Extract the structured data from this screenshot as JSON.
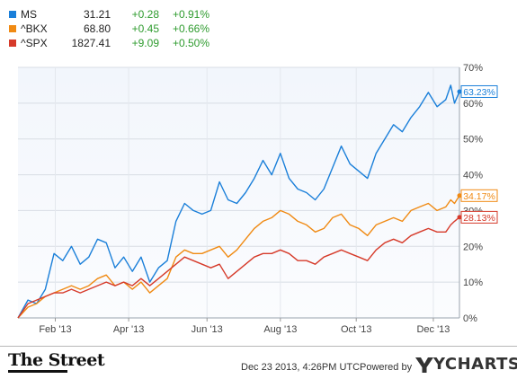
{
  "legend": [
    {
      "symbol": "MS",
      "price": "31.21",
      "change": "+0.28",
      "pct": "+0.91%",
      "color": "#1a7fd9"
    },
    {
      "symbol": "^BKX",
      "price": "68.80",
      "change": "+0.45",
      "pct": "+0.66%",
      "color": "#f08a13"
    },
    {
      "symbol": "^SPX",
      "price": "1827.41",
      "change": "+9.09",
      "pct": "+0.50%",
      "color": "#d63a2a"
    }
  ],
  "chart_data": {
    "type": "line",
    "title": "",
    "xlabel": "",
    "ylabel": "",
    "x_range": [
      "2013-01-02",
      "2013-12-23"
    ],
    "ylim": [
      0,
      70
    ],
    "y_ticks": [
      "0%",
      "10%",
      "20%",
      "30%",
      "40%",
      "50%",
      "60%",
      "70%"
    ],
    "y_tick_values": [
      0,
      10,
      20,
      30,
      40,
      50,
      60,
      70
    ],
    "x_ticks": [
      {
        "label": "Feb '13",
        "date": "2013-02-01"
      },
      {
        "label": "Apr '13",
        "date": "2013-04-01"
      },
      {
        "label": "Jun '13",
        "date": "2013-06-03"
      },
      {
        "label": "Aug '13",
        "date": "2013-08-01"
      },
      {
        "label": "Oct '13",
        "date": "2013-10-01"
      },
      {
        "label": "Dec '13",
        "date": "2013-12-02"
      }
    ],
    "grid": true,
    "legend_position": "top-left",
    "series": [
      {
        "name": "MS",
        "end_label": "63.23%",
        "color": "#1a7fd9",
        "points": [
          [
            "2013-01-02",
            0
          ],
          [
            "2013-01-10",
            5
          ],
          [
            "2013-01-17",
            4
          ],
          [
            "2013-01-24",
            8
          ],
          [
            "2013-01-31",
            18
          ],
          [
            "2013-02-07",
            16
          ],
          [
            "2013-02-14",
            20
          ],
          [
            "2013-02-21",
            15
          ],
          [
            "2013-02-28",
            17
          ],
          [
            "2013-03-07",
            22
          ],
          [
            "2013-03-14",
            21
          ],
          [
            "2013-03-21",
            14
          ],
          [
            "2013-03-28",
            17
          ],
          [
            "2013-04-04",
            13
          ],
          [
            "2013-04-11",
            17
          ],
          [
            "2013-04-18",
            10
          ],
          [
            "2013-04-25",
            14
          ],
          [
            "2013-05-02",
            16
          ],
          [
            "2013-05-09",
            27
          ],
          [
            "2013-05-16",
            32
          ],
          [
            "2013-05-23",
            30
          ],
          [
            "2013-05-30",
            29
          ],
          [
            "2013-06-06",
            30
          ],
          [
            "2013-06-13",
            38
          ],
          [
            "2013-06-20",
            33
          ],
          [
            "2013-06-27",
            32
          ],
          [
            "2013-07-04",
            35
          ],
          [
            "2013-07-11",
            39
          ],
          [
            "2013-07-18",
            44
          ],
          [
            "2013-07-25",
            40
          ],
          [
            "2013-08-01",
            46
          ],
          [
            "2013-08-08",
            39
          ],
          [
            "2013-08-15",
            36
          ],
          [
            "2013-08-22",
            35
          ],
          [
            "2013-08-29",
            33
          ],
          [
            "2013-09-05",
            36
          ],
          [
            "2013-09-12",
            42
          ],
          [
            "2013-09-19",
            48
          ],
          [
            "2013-09-26",
            43
          ],
          [
            "2013-10-03",
            41
          ],
          [
            "2013-10-10",
            39
          ],
          [
            "2013-10-17",
            46
          ],
          [
            "2013-10-24",
            50
          ],
          [
            "2013-10-31",
            54
          ],
          [
            "2013-11-07",
            52
          ],
          [
            "2013-11-14",
            56
          ],
          [
            "2013-11-21",
            59
          ],
          [
            "2013-11-28",
            63
          ],
          [
            "2013-12-05",
            59
          ],
          [
            "2013-12-12",
            61
          ],
          [
            "2013-12-16",
            65
          ],
          [
            "2013-12-19",
            60
          ],
          [
            "2013-12-23",
            63.23
          ]
        ]
      },
      {
        "name": "^BKX",
        "end_label": "34.17%",
        "color": "#f08a13",
        "points": [
          [
            "2013-01-02",
            0
          ],
          [
            "2013-01-10",
            3
          ],
          [
            "2013-01-17",
            4
          ],
          [
            "2013-01-24",
            6
          ],
          [
            "2013-01-31",
            7
          ],
          [
            "2013-02-07",
            8
          ],
          [
            "2013-02-14",
            9
          ],
          [
            "2013-02-21",
            8
          ],
          [
            "2013-02-28",
            9
          ],
          [
            "2013-03-07",
            11
          ],
          [
            "2013-03-14",
            12
          ],
          [
            "2013-03-21",
            9
          ],
          [
            "2013-03-28",
            10
          ],
          [
            "2013-04-04",
            8
          ],
          [
            "2013-04-11",
            10
          ],
          [
            "2013-04-18",
            7
          ],
          [
            "2013-04-25",
            9
          ],
          [
            "2013-05-02",
            11
          ],
          [
            "2013-05-09",
            17
          ],
          [
            "2013-05-16",
            19
          ],
          [
            "2013-05-23",
            18
          ],
          [
            "2013-05-30",
            18
          ],
          [
            "2013-06-06",
            19
          ],
          [
            "2013-06-13",
            20
          ],
          [
            "2013-06-20",
            17
          ],
          [
            "2013-06-27",
            19
          ],
          [
            "2013-07-04",
            22
          ],
          [
            "2013-07-11",
            25
          ],
          [
            "2013-07-18",
            27
          ],
          [
            "2013-07-25",
            28
          ],
          [
            "2013-08-01",
            30
          ],
          [
            "2013-08-08",
            29
          ],
          [
            "2013-08-15",
            27
          ],
          [
            "2013-08-22",
            26
          ],
          [
            "2013-08-29",
            24
          ],
          [
            "2013-09-05",
            25
          ],
          [
            "2013-09-12",
            28
          ],
          [
            "2013-09-19",
            29
          ],
          [
            "2013-09-26",
            26
          ],
          [
            "2013-10-03",
            25
          ],
          [
            "2013-10-10",
            23
          ],
          [
            "2013-10-17",
            26
          ],
          [
            "2013-10-24",
            27
          ],
          [
            "2013-10-31",
            28
          ],
          [
            "2013-11-07",
            27
          ],
          [
            "2013-11-14",
            30
          ],
          [
            "2013-11-21",
            31
          ],
          [
            "2013-11-28",
            32
          ],
          [
            "2013-12-05",
            30
          ],
          [
            "2013-12-12",
            31
          ],
          [
            "2013-12-16",
            33
          ],
          [
            "2013-12-19",
            32
          ],
          [
            "2013-12-23",
            34.17
          ]
        ]
      },
      {
        "name": "^SPX",
        "end_label": "28.13%",
        "color": "#d63a2a",
        "points": [
          [
            "2013-01-02",
            0
          ],
          [
            "2013-01-10",
            4
          ],
          [
            "2013-01-17",
            5
          ],
          [
            "2013-01-24",
            6
          ],
          [
            "2013-01-31",
            7
          ],
          [
            "2013-02-07",
            7
          ],
          [
            "2013-02-14",
            8
          ],
          [
            "2013-02-21",
            7
          ],
          [
            "2013-02-28",
            8
          ],
          [
            "2013-03-07",
            9
          ],
          [
            "2013-03-14",
            10
          ],
          [
            "2013-03-21",
            9
          ],
          [
            "2013-03-28",
            10
          ],
          [
            "2013-04-04",
            9
          ],
          [
            "2013-04-11",
            11
          ],
          [
            "2013-04-18",
            9
          ],
          [
            "2013-04-25",
            11
          ],
          [
            "2013-05-02",
            13
          ],
          [
            "2013-05-09",
            15
          ],
          [
            "2013-05-16",
            17
          ],
          [
            "2013-05-23",
            16
          ],
          [
            "2013-05-30",
            15
          ],
          [
            "2013-06-06",
            14
          ],
          [
            "2013-06-13",
            15
          ],
          [
            "2013-06-20",
            11
          ],
          [
            "2013-06-27",
            13
          ],
          [
            "2013-07-04",
            15
          ],
          [
            "2013-07-11",
            17
          ],
          [
            "2013-07-18",
            18
          ],
          [
            "2013-07-25",
            18
          ],
          [
            "2013-08-01",
            19
          ],
          [
            "2013-08-08",
            18
          ],
          [
            "2013-08-15",
            16
          ],
          [
            "2013-08-22",
            16
          ],
          [
            "2013-08-29",
            15
          ],
          [
            "2013-09-05",
            17
          ],
          [
            "2013-09-12",
            18
          ],
          [
            "2013-09-19",
            19
          ],
          [
            "2013-09-26",
            18
          ],
          [
            "2013-10-03",
            17
          ],
          [
            "2013-10-10",
            16
          ],
          [
            "2013-10-17",
            19
          ],
          [
            "2013-10-24",
            21
          ],
          [
            "2013-10-31",
            22
          ],
          [
            "2013-11-07",
            21
          ],
          [
            "2013-11-14",
            23
          ],
          [
            "2013-11-21",
            24
          ],
          [
            "2013-11-28",
            25
          ],
          [
            "2013-12-05",
            24
          ],
          [
            "2013-12-12",
            24
          ],
          [
            "2013-12-16",
            26
          ],
          [
            "2013-12-19",
            27
          ],
          [
            "2013-12-23",
            28.13
          ]
        ]
      }
    ]
  },
  "footer": {
    "brand": "The Street",
    "timestamp": "Dec 23 2013, 4:26PM UTC.",
    "powered_by": "Powered by",
    "ycharts": "YCHARTS"
  }
}
